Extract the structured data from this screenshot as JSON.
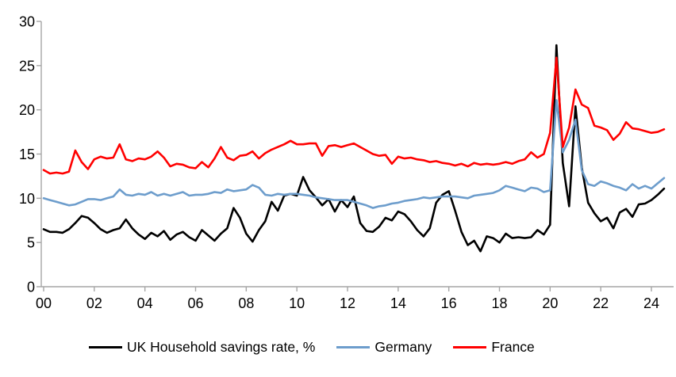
{
  "chart_data": {
    "type": "line",
    "title": "",
    "frequency": "quarterly",
    "x_start": "2000Q1",
    "x_end": "2024Q3",
    "xlabel": "",
    "ylabel": "",
    "ylim": [
      0,
      30
    ],
    "y_ticks": [
      0,
      5,
      10,
      15,
      20,
      25,
      30
    ],
    "x_tick_labels": [
      "00",
      "02",
      "04",
      "06",
      "08",
      "10",
      "12",
      "14",
      "16",
      "18",
      "20",
      "22",
      "24"
    ],
    "grid": "off",
    "legend_position": "bottom",
    "axis_color": "#A6A6A6",
    "tick_label_color": "#000000",
    "series": [
      {
        "name": "UK Household savings rate, %",
        "color": "#000000",
        "values": [
          6.5,
          6.2,
          6.2,
          6.1,
          6.5,
          7.2,
          8.0,
          7.8,
          7.2,
          6.5,
          6.1,
          6.4,
          6.6,
          7.6,
          6.6,
          5.9,
          5.4,
          6.1,
          5.7,
          6.3,
          5.3,
          5.9,
          6.2,
          5.6,
          5.2,
          6.4,
          5.8,
          5.2,
          6.0,
          6.6,
          8.9,
          7.8,
          6.0,
          5.1,
          6.4,
          7.4,
          9.6,
          8.6,
          10.3,
          10.5,
          10.3,
          12.4,
          10.9,
          10.1,
          9.2,
          9.9,
          8.5,
          9.8,
          9.0,
          10.2,
          7.2,
          6.3,
          6.2,
          6.8,
          7.8,
          7.5,
          8.5,
          8.2,
          7.4,
          6.4,
          5.7,
          6.6,
          9.5,
          10.4,
          10.8,
          8.6,
          6.2,
          4.7,
          5.2,
          4.0,
          5.7,
          5.5,
          5.0,
          6.0,
          5.5,
          5.6,
          5.5,
          5.6,
          6.4,
          5.9,
          7.0,
          27.3,
          14.0,
          9.1,
          20.4,
          13.5,
          9.5,
          8.3,
          7.4,
          7.8,
          6.6,
          8.4,
          8.8,
          7.9,
          9.3,
          9.4,
          9.8,
          10.4,
          11.1
        ]
      },
      {
        "name": "Germany",
        "color": "#6D9DCC",
        "values": [
          10.0,
          9.8,
          9.6,
          9.4,
          9.2,
          9.3,
          9.6,
          9.9,
          9.9,
          9.8,
          10.0,
          10.2,
          11.0,
          10.4,
          10.3,
          10.5,
          10.4,
          10.7,
          10.3,
          10.5,
          10.3,
          10.5,
          10.7,
          10.3,
          10.4,
          10.4,
          10.5,
          10.7,
          10.6,
          11.0,
          10.8,
          10.9,
          11.0,
          11.5,
          11.2,
          10.4,
          10.3,
          10.5,
          10.4,
          10.5,
          10.5,
          10.4,
          10.3,
          10.1,
          10.0,
          9.9,
          9.8,
          9.8,
          9.8,
          9.6,
          9.4,
          9.2,
          8.9,
          9.1,
          9.2,
          9.4,
          9.5,
          9.7,
          9.8,
          9.9,
          10.1,
          10.0,
          10.1,
          10.2,
          10.2,
          10.2,
          10.1,
          10.0,
          10.3,
          10.4,
          10.5,
          10.6,
          10.9,
          11.4,
          11.2,
          11.0,
          10.8,
          11.2,
          11.1,
          10.7,
          10.9,
          21.1,
          15.2,
          16.6,
          18.9,
          13.2,
          11.6,
          11.4,
          11.9,
          11.7,
          11.4,
          11.2,
          10.9,
          11.6,
          11.1,
          11.4,
          11.1,
          11.7,
          12.3
        ]
      },
      {
        "name": "France",
        "color": "#FF0000",
        "values": [
          13.2,
          12.8,
          12.9,
          12.8,
          13.0,
          15.4,
          14.1,
          13.3,
          14.4,
          14.7,
          14.5,
          14.6,
          16.1,
          14.4,
          14.2,
          14.5,
          14.4,
          14.7,
          15.3,
          14.6,
          13.6,
          13.9,
          13.8,
          13.5,
          13.4,
          14.1,
          13.5,
          14.5,
          15.8,
          14.6,
          14.3,
          14.8,
          14.9,
          15.3,
          14.5,
          15.1,
          15.5,
          15.8,
          16.1,
          16.5,
          16.1,
          16.1,
          16.2,
          16.2,
          14.8,
          15.9,
          16.0,
          15.8,
          16.0,
          16.2,
          15.8,
          15.4,
          15.0,
          14.8,
          14.9,
          13.9,
          14.7,
          14.5,
          14.6,
          14.4,
          14.3,
          14.1,
          14.2,
          14.0,
          13.9,
          13.7,
          13.9,
          13.6,
          14.0,
          13.8,
          13.9,
          13.8,
          13.9,
          14.1,
          13.9,
          14.2,
          14.4,
          15.2,
          14.6,
          15.0,
          17.4,
          25.9,
          15.8,
          18.0,
          22.3,
          20.6,
          20.2,
          18.2,
          18.0,
          17.7,
          16.6,
          17.3,
          18.6,
          17.9,
          17.8,
          17.6,
          17.4,
          17.5,
          17.8
        ]
      }
    ]
  }
}
